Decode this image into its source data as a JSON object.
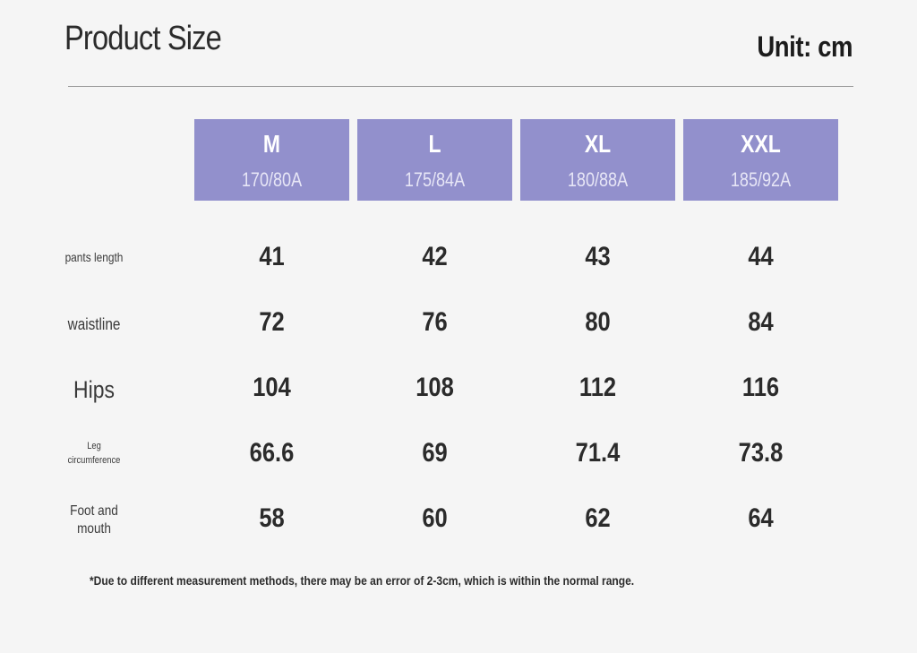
{
  "header": {
    "title": "Product Size",
    "unit": "Unit: cm"
  },
  "sizes": [
    {
      "name": "M",
      "code": "170/80A"
    },
    {
      "name": "L",
      "code": "175/84A"
    },
    {
      "name": "XL",
      "code": "180/88A"
    },
    {
      "name": "XXL",
      "code": "185/92A"
    }
  ],
  "rows": [
    {
      "label_lines": [
        "pants length"
      ],
      "values": [
        "41",
        "42",
        "43",
        "44"
      ]
    },
    {
      "label_lines": [
        "waistline"
      ],
      "values": [
        "72",
        "76",
        "80",
        "84"
      ]
    },
    {
      "label_lines": [
        "Hips"
      ],
      "values": [
        "104",
        "108",
        "112",
        "116"
      ]
    },
    {
      "label_lines": [
        "Leg",
        "circumference"
      ],
      "values": [
        "66.6",
        "69",
        "71.4",
        "73.8"
      ]
    },
    {
      "label_lines": [
        "Foot and",
        "mouth"
      ],
      "values": [
        "58",
        "60",
        "62",
        "64"
      ]
    }
  ],
  "note": "*Due to different measurement methods, there may be an error of 2-3cm, which is within the normal range.",
  "colors": {
    "header_bg": "#9290cc",
    "background": "#f5f5f5",
    "text": "#2b2b2b"
  }
}
